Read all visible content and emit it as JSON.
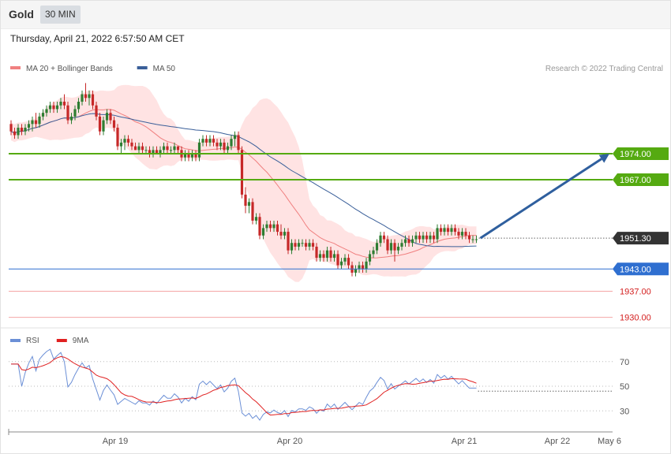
{
  "header": {
    "title": "Gold",
    "timeframe": "30 MIN"
  },
  "datetime": "Thursday, April 21, 2022 6:57:50 AM CET",
  "watermark": "Research © 2022 Trading Central",
  "colors": {
    "bullish": "#2e7d32",
    "bearish": "#c62828",
    "bollinger": "#ffd9d9",
    "ma20": "#f08080",
    "ma50": "#3a5f99",
    "resistance": "#55aa11",
    "support": "#2f6fd0",
    "support_light": "#f4a6a6",
    "rsi": "#6b8fd6",
    "rsi_ma": "#e02020",
    "current": "#333333",
    "arrow": "#2f5f9e"
  },
  "chart_data": [
    {
      "type": "candlestick",
      "legend": [
        {
          "name": "MA 20 + Bollinger Bands",
          "color": "#f08080"
        },
        {
          "name": "MA 50",
          "color": "#3a5f99"
        }
      ],
      "legend_position": "top-left",
      "x_ticks": [
        "Apr 19",
        "Apr 20",
        "Apr 21",
        "Apr 22",
        "May 6"
      ],
      "ylim": [
        1928,
        1995
      ],
      "levels": [
        {
          "label": "1974.00",
          "value": 1974.0,
          "kind": "resistance"
        },
        {
          "label": "1967.00",
          "value": 1967.0,
          "kind": "resistance"
        },
        {
          "label": "1951.30",
          "value": 1951.3,
          "kind": "current"
        },
        {
          "label": "1943.00",
          "value": 1943.0,
          "kind": "support"
        },
        {
          "label": "1937.00",
          "value": 1937.0,
          "kind": "support_light"
        },
        {
          "label": "1930.00",
          "value": 1930.0,
          "kind": "support_light"
        }
      ],
      "projection": {
        "from": 1951.3,
        "to": 1974.0
      },
      "candles": [
        [
          1982,
          1983,
          1979,
          1980
        ],
        [
          1980,
          1981,
          1978,
          1979
        ],
        [
          1979,
          1982,
          1978,
          1981
        ],
        [
          1981,
          1982,
          1979,
          1980
        ],
        [
          1980,
          1982,
          1979,
          1981
        ],
        [
          1981,
          1983,
          1980,
          1982
        ],
        [
          1982,
          1984,
          1980,
          1983
        ],
        [
          1983,
          1985,
          1981,
          1982
        ],
        [
          1982,
          1985,
          1981,
          1984
        ],
        [
          1984,
          1986,
          1983,
          1985
        ],
        [
          1985,
          1987,
          1984,
          1986
        ],
        [
          1986,
          1988,
          1985,
          1987
        ],
        [
          1987,
          1988,
          1985,
          1986
        ],
        [
          1986,
          1988,
          1985,
          1987
        ],
        [
          1987,
          1989,
          1986,
          1988
        ],
        [
          1988,
          1990,
          1986,
          1987
        ],
        [
          1987,
          1988,
          1982,
          1983
        ],
        [
          1983,
          1985,
          1982,
          1984
        ],
        [
          1984,
          1987,
          1983,
          1986
        ],
        [
          1986,
          1989,
          1985,
          1988
        ],
        [
          1988,
          1991,
          1987,
          1990
        ],
        [
          1990,
          1993,
          1988,
          1989
        ],
        [
          1989,
          1991,
          1987,
          1990
        ],
        [
          1990,
          1991,
          1986,
          1987
        ],
        [
          1987,
          1988,
          1983,
          1984
        ],
        [
          1984,
          1985,
          1979,
          1980
        ],
        [
          1980,
          1984,
          1979,
          1983
        ],
        [
          1983,
          1986,
          1982,
          1985
        ],
        [
          1985,
          1986,
          1982,
          1983
        ],
        [
          1983,
          1984,
          1980,
          1981
        ],
        [
          1981,
          1982,
          1975,
          1976
        ],
        [
          1976,
          1978,
          1974,
          1977
        ],
        [
          1977,
          1979,
          1975,
          1978
        ],
        [
          1978,
          1979,
          1976,
          1977
        ],
        [
          1977,
          1978,
          1975,
          1976
        ],
        [
          1976,
          1977,
          1975,
          1975
        ],
        [
          1975,
          1977,
          1974,
          1976
        ],
        [
          1976,
          1977,
          1974,
          1975
        ],
        [
          1975,
          1976,
          1974,
          1975
        ],
        [
          1975,
          1976,
          1973,
          1974
        ],
        [
          1974,
          1976,
          1973,
          1975
        ],
        [
          1975,
          1976,
          1974,
          1974
        ],
        [
          1974,
          1976,
          1973,
          1975
        ],
        [
          1975,
          1977,
          1974,
          1976
        ],
        [
          1976,
          1977,
          1974,
          1975
        ],
        [
          1975,
          1976,
          1974,
          1975
        ],
        [
          1975,
          1977,
          1974,
          1976
        ],
        [
          1976,
          1976,
          1974,
          1975
        ],
        [
          1975,
          1976,
          1972,
          1973
        ],
        [
          1973,
          1975,
          1972,
          1974
        ],
        [
          1974,
          1975,
          1972,
          1973
        ],
        [
          1973,
          1975,
          1972,
          1974
        ],
        [
          1974,
          1975,
          1972,
          1973
        ],
        [
          1973,
          1978,
          1972,
          1977
        ],
        [
          1977,
          1979,
          1976,
          1978
        ],
        [
          1978,
          1979,
          1976,
          1977
        ],
        [
          1977,
          1979,
          1976,
          1978
        ],
        [
          1978,
          1979,
          1976,
          1977
        ],
        [
          1977,
          1978,
          1975,
          1976
        ],
        [
          1976,
          1978,
          1975,
          1977
        ],
        [
          1977,
          1978,
          1974,
          1975
        ],
        [
          1975,
          1977,
          1974,
          1976
        ],
        [
          1976,
          1979,
          1975,
          1978
        ],
        [
          1978,
          1980,
          1976,
          1979
        ],
        [
          1979,
          1980,
          1974,
          1975
        ],
        [
          1975,
          1976,
          1962,
          1963
        ],
        [
          1963,
          1965,
          1958,
          1960
        ],
        [
          1960,
          1962,
          1958,
          1961
        ],
        [
          1961,
          1962,
          1955,
          1956
        ],
        [
          1956,
          1958,
          1955,
          1957
        ],
        [
          1957,
          1958,
          1951,
          1952
        ],
        [
          1952,
          1955,
          1951,
          1954
        ],
        [
          1954,
          1956,
          1953,
          1955
        ],
        [
          1955,
          1956,
          1953,
          1954
        ],
        [
          1954,
          1956,
          1953,
          1955
        ],
        [
          1955,
          1956,
          1952,
          1953
        ],
        [
          1953,
          1955,
          1951,
          1952
        ],
        [
          1952,
          1954,
          1951,
          1953
        ],
        [
          1953,
          1954,
          1947,
          1948
        ],
        [
          1948,
          1951,
          1947,
          1950
        ],
        [
          1950,
          1951,
          1948,
          1949
        ],
        [
          1949,
          1951,
          1948,
          1950
        ],
        [
          1950,
          1951,
          1949,
          1950
        ],
        [
          1950,
          1951,
          1948,
          1949
        ],
        [
          1949,
          1951,
          1948,
          1950
        ],
        [
          1950,
          1951,
          1948,
          1949
        ],
        [
          1949,
          1950,
          1945,
          1946
        ],
        [
          1946,
          1948,
          1945,
          1947
        ],
        [
          1947,
          1948,
          1945,
          1946
        ],
        [
          1946,
          1949,
          1945,
          1948
        ],
        [
          1948,
          1949,
          1945,
          1946
        ],
        [
          1946,
          1948,
          1945,
          1947
        ],
        [
          1947,
          1948,
          1943,
          1944
        ],
        [
          1944,
          1946,
          1943,
          1945
        ],
        [
          1945,
          1947,
          1944,
          1946
        ],
        [
          1946,
          1947,
          1943,
          1944
        ],
        [
          1944,
          1945,
          1941,
          1942
        ],
        [
          1942,
          1944,
          1941,
          1943
        ],
        [
          1943,
          1945,
          1942,
          1944
        ],
        [
          1944,
          1945,
          1942,
          1943
        ],
        [
          1943,
          1946,
          1942,
          1945
        ],
        [
          1945,
          1948,
          1944,
          1947
        ],
        [
          1947,
          1949,
          1946,
          1948
        ],
        [
          1948,
          1951,
          1947,
          1950
        ],
        [
          1950,
          1953,
          1949,
          1952
        ],
        [
          1952,
          1953,
          1950,
          1951
        ],
        [
          1951,
          1952,
          1947,
          1948
        ],
        [
          1948,
          1951,
          1947,
          1950
        ],
        [
          1950,
          1951,
          1945,
          1948
        ],
        [
          1948,
          1950,
          1947,
          1949
        ],
        [
          1949,
          1951,
          1948,
          1950
        ],
        [
          1950,
          1952,
          1949,
          1951
        ],
        [
          1951,
          1952,
          1949,
          1950
        ],
        [
          1950,
          1952,
          1949,
          1951
        ],
        [
          1951,
          1953,
          1950,
          1952
        ],
        [
          1952,
          1953,
          1950,
          1951
        ],
        [
          1951,
          1953,
          1950,
          1952
        ],
        [
          1952,
          1953,
          1950,
          1951
        ],
        [
          1951,
          1953,
          1950,
          1952
        ],
        [
          1952,
          1953,
          1950,
          1951
        ],
        [
          1951,
          1955,
          1950,
          1954
        ],
        [
          1954,
          1955,
          1952,
          1953
        ],
        [
          1953,
          1955,
          1952,
          1954
        ],
        [
          1954,
          1955,
          1952,
          1953
        ],
        [
          1953,
          1955,
          1952,
          1954
        ],
        [
          1954,
          1955,
          1952,
          1953
        ],
        [
          1953,
          1954,
          1951,
          1952
        ],
        [
          1952,
          1954,
          1951,
          1953
        ],
        [
          1953,
          1954,
          1951,
          1952
        ],
        [
          1952,
          1953,
          1950,
          1951
        ],
        [
          1951,
          1952,
          1950,
          1951
        ],
        [
          1951,
          1952,
          1950,
          1951
        ]
      ]
    },
    {
      "type": "line",
      "legend": [
        {
          "name": "RSI",
          "color": "#6b8fd6"
        },
        {
          "name": "9MA",
          "color": "#e02020"
        }
      ],
      "legend_position": "top-left",
      "y_ticks": [
        70,
        50,
        30
      ],
      "ylim": [
        18,
        82
      ],
      "current_rsi": 46
    }
  ]
}
